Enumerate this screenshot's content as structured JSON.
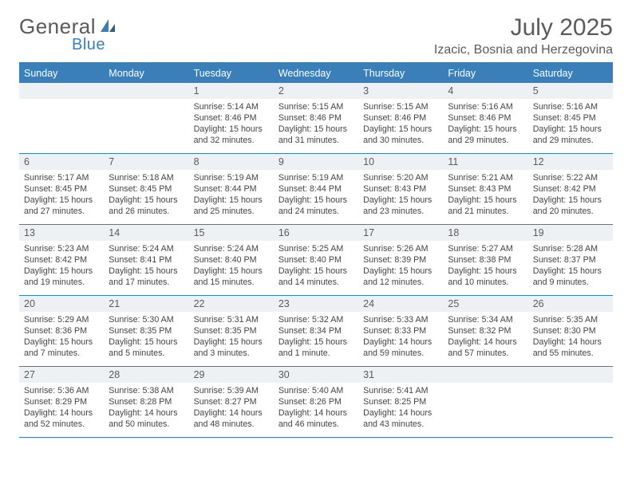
{
  "brand": {
    "general": "General",
    "blue": "Blue"
  },
  "header": {
    "month": "July 2025",
    "location": "Izacic, Bosnia and Herzegovina"
  },
  "colors": {
    "accent": "#3a7fb8",
    "daynum_bg": "#eef1f3",
    "text": "#444444",
    "header_text": "#5a5a5a",
    "background": "#ffffff"
  },
  "dayNames": [
    "Sunday",
    "Monday",
    "Tuesday",
    "Wednesday",
    "Thursday",
    "Friday",
    "Saturday"
  ],
  "weeks": [
    [
      null,
      null,
      {
        "n": "1",
        "sr": "Sunrise: 5:14 AM",
        "ss": "Sunset: 8:46 PM",
        "d1": "Daylight: 15 hours",
        "d2": "and 32 minutes."
      },
      {
        "n": "2",
        "sr": "Sunrise: 5:15 AM",
        "ss": "Sunset: 8:46 PM",
        "d1": "Daylight: 15 hours",
        "d2": "and 31 minutes."
      },
      {
        "n": "3",
        "sr": "Sunrise: 5:15 AM",
        "ss": "Sunset: 8:46 PM",
        "d1": "Daylight: 15 hours",
        "d2": "and 30 minutes."
      },
      {
        "n": "4",
        "sr": "Sunrise: 5:16 AM",
        "ss": "Sunset: 8:46 PM",
        "d1": "Daylight: 15 hours",
        "d2": "and 29 minutes."
      },
      {
        "n": "5",
        "sr": "Sunrise: 5:16 AM",
        "ss": "Sunset: 8:45 PM",
        "d1": "Daylight: 15 hours",
        "d2": "and 29 minutes."
      }
    ],
    [
      {
        "n": "6",
        "sr": "Sunrise: 5:17 AM",
        "ss": "Sunset: 8:45 PM",
        "d1": "Daylight: 15 hours",
        "d2": "and 27 minutes."
      },
      {
        "n": "7",
        "sr": "Sunrise: 5:18 AM",
        "ss": "Sunset: 8:45 PM",
        "d1": "Daylight: 15 hours",
        "d2": "and 26 minutes."
      },
      {
        "n": "8",
        "sr": "Sunrise: 5:19 AM",
        "ss": "Sunset: 8:44 PM",
        "d1": "Daylight: 15 hours",
        "d2": "and 25 minutes."
      },
      {
        "n": "9",
        "sr": "Sunrise: 5:19 AM",
        "ss": "Sunset: 8:44 PM",
        "d1": "Daylight: 15 hours",
        "d2": "and 24 minutes."
      },
      {
        "n": "10",
        "sr": "Sunrise: 5:20 AM",
        "ss": "Sunset: 8:43 PM",
        "d1": "Daylight: 15 hours",
        "d2": "and 23 minutes."
      },
      {
        "n": "11",
        "sr": "Sunrise: 5:21 AM",
        "ss": "Sunset: 8:43 PM",
        "d1": "Daylight: 15 hours",
        "d2": "and 21 minutes."
      },
      {
        "n": "12",
        "sr": "Sunrise: 5:22 AM",
        "ss": "Sunset: 8:42 PM",
        "d1": "Daylight: 15 hours",
        "d2": "and 20 minutes."
      }
    ],
    [
      {
        "n": "13",
        "sr": "Sunrise: 5:23 AM",
        "ss": "Sunset: 8:42 PM",
        "d1": "Daylight: 15 hours",
        "d2": "and 19 minutes."
      },
      {
        "n": "14",
        "sr": "Sunrise: 5:24 AM",
        "ss": "Sunset: 8:41 PM",
        "d1": "Daylight: 15 hours",
        "d2": "and 17 minutes."
      },
      {
        "n": "15",
        "sr": "Sunrise: 5:24 AM",
        "ss": "Sunset: 8:40 PM",
        "d1": "Daylight: 15 hours",
        "d2": "and 15 minutes."
      },
      {
        "n": "16",
        "sr": "Sunrise: 5:25 AM",
        "ss": "Sunset: 8:40 PM",
        "d1": "Daylight: 15 hours",
        "d2": "and 14 minutes."
      },
      {
        "n": "17",
        "sr": "Sunrise: 5:26 AM",
        "ss": "Sunset: 8:39 PM",
        "d1": "Daylight: 15 hours",
        "d2": "and 12 minutes."
      },
      {
        "n": "18",
        "sr": "Sunrise: 5:27 AM",
        "ss": "Sunset: 8:38 PM",
        "d1": "Daylight: 15 hours",
        "d2": "and 10 minutes."
      },
      {
        "n": "19",
        "sr": "Sunrise: 5:28 AM",
        "ss": "Sunset: 8:37 PM",
        "d1": "Daylight: 15 hours",
        "d2": "and 9 minutes."
      }
    ],
    [
      {
        "n": "20",
        "sr": "Sunrise: 5:29 AM",
        "ss": "Sunset: 8:36 PM",
        "d1": "Daylight: 15 hours",
        "d2": "and 7 minutes."
      },
      {
        "n": "21",
        "sr": "Sunrise: 5:30 AM",
        "ss": "Sunset: 8:35 PM",
        "d1": "Daylight: 15 hours",
        "d2": "and 5 minutes."
      },
      {
        "n": "22",
        "sr": "Sunrise: 5:31 AM",
        "ss": "Sunset: 8:35 PM",
        "d1": "Daylight: 15 hours",
        "d2": "and 3 minutes."
      },
      {
        "n": "23",
        "sr": "Sunrise: 5:32 AM",
        "ss": "Sunset: 8:34 PM",
        "d1": "Daylight: 15 hours",
        "d2": "and 1 minute."
      },
      {
        "n": "24",
        "sr": "Sunrise: 5:33 AM",
        "ss": "Sunset: 8:33 PM",
        "d1": "Daylight: 14 hours",
        "d2": "and 59 minutes."
      },
      {
        "n": "25",
        "sr": "Sunrise: 5:34 AM",
        "ss": "Sunset: 8:32 PM",
        "d1": "Daylight: 14 hours",
        "d2": "and 57 minutes."
      },
      {
        "n": "26",
        "sr": "Sunrise: 5:35 AM",
        "ss": "Sunset: 8:30 PM",
        "d1": "Daylight: 14 hours",
        "d2": "and 55 minutes."
      }
    ],
    [
      {
        "n": "27",
        "sr": "Sunrise: 5:36 AM",
        "ss": "Sunset: 8:29 PM",
        "d1": "Daylight: 14 hours",
        "d2": "and 52 minutes."
      },
      {
        "n": "28",
        "sr": "Sunrise: 5:38 AM",
        "ss": "Sunset: 8:28 PM",
        "d1": "Daylight: 14 hours",
        "d2": "and 50 minutes."
      },
      {
        "n": "29",
        "sr": "Sunrise: 5:39 AM",
        "ss": "Sunset: 8:27 PM",
        "d1": "Daylight: 14 hours",
        "d2": "and 48 minutes."
      },
      {
        "n": "30",
        "sr": "Sunrise: 5:40 AM",
        "ss": "Sunset: 8:26 PM",
        "d1": "Daylight: 14 hours",
        "d2": "and 46 minutes."
      },
      {
        "n": "31",
        "sr": "Sunrise: 5:41 AM",
        "ss": "Sunset: 8:25 PM",
        "d1": "Daylight: 14 hours",
        "d2": "and 43 minutes."
      },
      null,
      null
    ]
  ]
}
